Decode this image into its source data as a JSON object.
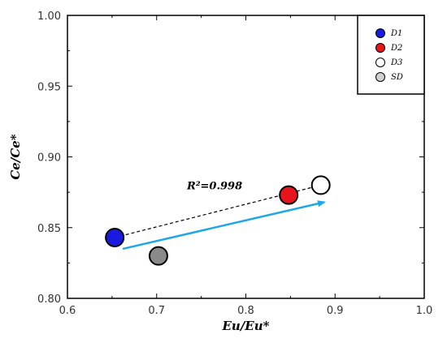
{
  "chart_data": {
    "type": "scatter",
    "title": "",
    "xlabel": "Eu/Eu*",
    "ylabel": "Ce/Ce*",
    "xlim": [
      0.6,
      1.0
    ],
    "ylim": [
      0.8,
      1.0
    ],
    "xticks": [
      "0.6",
      "0.7",
      "0.8",
      "0.9",
      "1.0"
    ],
    "yticks": [
      "0.80",
      "0.85",
      "0.90",
      "0.95",
      "1.00"
    ],
    "legend_position": "top-right",
    "series": [
      {
        "name": "D1",
        "color": "#1a1adf",
        "points": [
          {
            "x": 0.653,
            "y": 0.843
          }
        ]
      },
      {
        "name": "D2",
        "color": "#e8141b",
        "points": [
          {
            "x": 0.848,
            "y": 0.873
          }
        ]
      },
      {
        "name": "D3",
        "color": "#ffffff",
        "points": [
          {
            "x": 0.884,
            "y": 0.88
          }
        ]
      },
      {
        "name": "SD",
        "color": "#8a8a8a",
        "legend_color": "#d0d0d0",
        "points": [
          {
            "x": 0.702,
            "y": 0.83
          }
        ]
      }
    ],
    "annotations": {
      "r2_label": "R²=0.998",
      "r2_position": {
        "x": 0.765,
        "y": 0.877
      },
      "trend_line": {
        "from": [
          0.653,
          0.843
        ],
        "to": [
          0.884,
          0.88
        ],
        "style": "dashed",
        "color": "#000000"
      },
      "arrow": {
        "from": [
          0.662,
          0.835
        ],
        "to": [
          0.888,
          0.868
        ],
        "color": "#1ea7e4"
      }
    }
  }
}
